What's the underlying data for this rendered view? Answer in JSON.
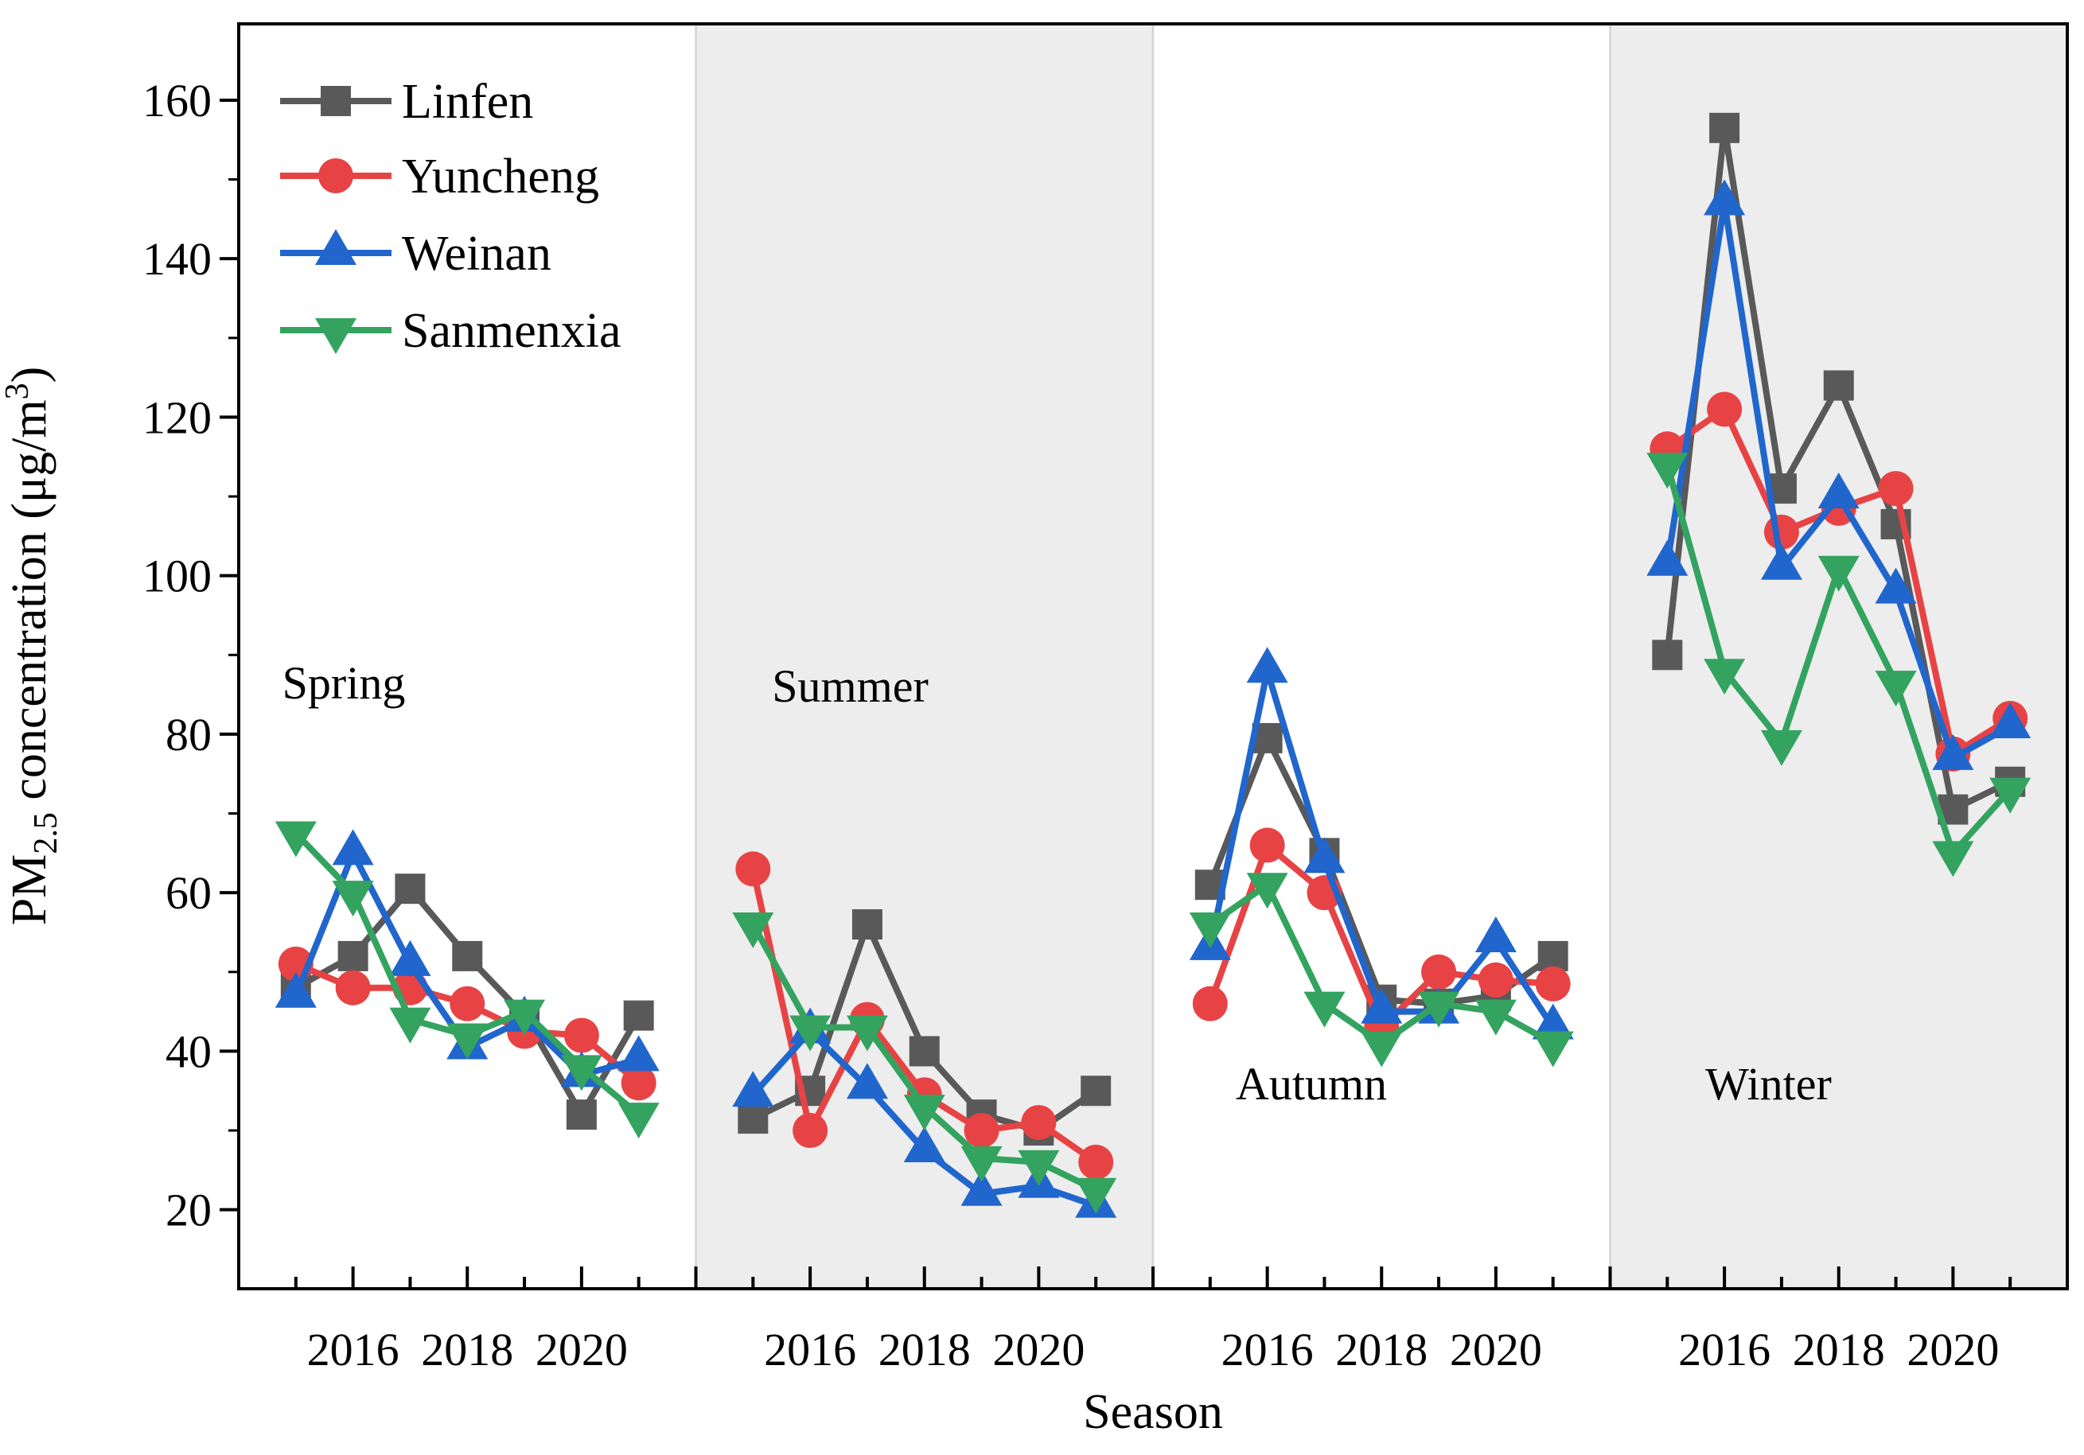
{
  "chart_data": {
    "type": "line",
    "title": "",
    "xlabel": "Season",
    "ylabel": "PM2.5 concentration (μg/m3)",
    "ylabel_parts": {
      "pre": "PM",
      "sub": "2.5",
      "mid": " concentration (μg/m",
      "sup": "3",
      "post": ")"
    },
    "ylim": [
      10,
      170
    ],
    "yticks_major": [
      20,
      40,
      60,
      80,
      100,
      120,
      140,
      160
    ],
    "yticks_minor": [
      30,
      50,
      70,
      90,
      110,
      130,
      150
    ],
    "grid": false,
    "legend_position": "upper left",
    "x_years": [
      2015,
      2016,
      2017,
      2018,
      2019,
      2020,
      2021
    ],
    "x_tick_labels": [
      "2016",
      "2018",
      "2020"
    ],
    "panels": [
      {
        "season": "Spring",
        "shaded": false
      },
      {
        "season": "Summer",
        "shaded": true
      },
      {
        "season": "Autumn",
        "shaded": false
      },
      {
        "season": "Winter",
        "shaded": true
      }
    ],
    "series": [
      {
        "name": "Linfen",
        "color": "#595959",
        "marker": "square",
        "values": {
          "Spring": [
            48,
            52,
            60.5,
            52,
            44.5,
            32,
            44.5
          ],
          "Summer": [
            31.5,
            35,
            56,
            40,
            32,
            30,
            35
          ],
          "Autumn": [
            61,
            79.5,
            65,
            46.5,
            46,
            47,
            52
          ],
          "Winter": [
            90,
            156.5,
            111,
            124,
            106.5,
            70.5,
            74
          ]
        }
      },
      {
        "name": "Yuncheng",
        "color": "#e74345",
        "marker": "circle",
        "values": {
          "Spring": [
            51,
            48,
            48,
            46,
            42.5,
            42,
            36
          ],
          "Summer": [
            63,
            30,
            44,
            34.5,
            30,
            31,
            26
          ],
          "Autumn": [
            46,
            66,
            60,
            43,
            50,
            49,
            48.5
          ],
          "Winter": [
            116,
            121,
            105.5,
            108.5,
            111,
            77.5,
            82
          ]
        }
      },
      {
        "name": "Weinan",
        "color": "#2066cc",
        "marker": "triangle-up",
        "values": {
          "Spring": [
            47,
            65,
            51,
            40.5,
            44,
            37,
            39
          ],
          "Summer": [
            34.5,
            42.5,
            35.5,
            27.5,
            22,
            23,
            20.5
          ],
          "Autumn": [
            53,
            88,
            64,
            45,
            45,
            54,
            43
          ],
          "Winter": [
            101.5,
            147,
            101,
            110,
            98,
            77,
            81
          ]
        }
      },
      {
        "name": "Sanmenxia",
        "color": "#33a35f",
        "marker": "triangle-down",
        "values": {
          "Spring": [
            67.5,
            60,
            44,
            42,
            45,
            38,
            32
          ],
          "Summer": [
            56,
            43,
            43,
            33,
            26.5,
            26,
            22.5
          ],
          "Autumn": [
            56,
            61,
            46,
            41,
            46,
            45,
            41
          ],
          "Winter": [
            114,
            88,
            79,
            101,
            86.5,
            65,
            73
          ]
        }
      }
    ],
    "colors": {
      "shaded_band": "#ededed",
      "band_edge": "#d4d4d4",
      "frame": "#000000"
    }
  }
}
